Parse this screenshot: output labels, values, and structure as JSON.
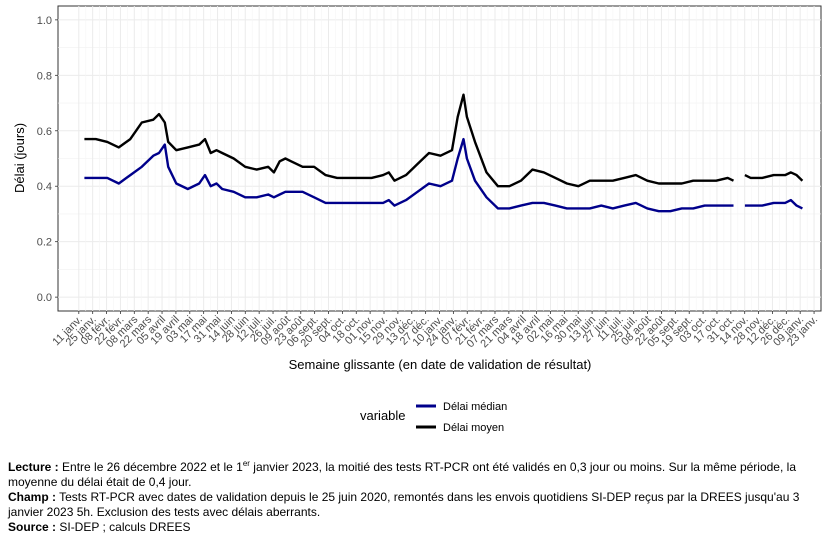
{
  "chart_data": {
    "type": "line",
    "xlabel": "Semaine glissante (en date de validation de résultat)",
    "ylabel": "Délai (jours)",
    "ylim": [
      -0.05,
      1.05
    ],
    "yticks": [
      "0.0",
      "0.2",
      "0.4",
      "0.6",
      "0.8",
      "1.0"
    ],
    "xlim": [
      -1.5,
      53.5
    ],
    "x_tick_labels": [
      "11 janv.",
      "25 janv.",
      "08 févr.",
      "22 févr.",
      "08 mars",
      "22 mars",
      "05 avril",
      "19 avril",
      "03 mai",
      "17 mai",
      "31 mai",
      "14 juin",
      "28 juin",
      "12 juil.",
      "26 juil.",
      "09 août",
      "23 août",
      "06 sept.",
      "20 sept.",
      "04 oct.",
      "18 oct.",
      "01 nov.",
      "15 nov.",
      "29 nov.",
      "13 déc.",
      "27 déc.",
      "10 janv.",
      "24 janv.",
      "07 févr.",
      "21 févr.",
      "07 mars",
      "21 mars",
      "04 avril",
      "18 avril",
      "02 mai",
      "16 mai",
      "30 mai",
      "13 juin",
      "27 juin",
      "11 juil.",
      "25 juil.",
      "08 août",
      "22 août",
      "05 sept.",
      "19 sept.",
      "03 oct.",
      "17 oct.",
      "31 oct.",
      "14 nov.",
      "28 nov.",
      "12 déc.",
      "26 déc.",
      "09 janv.",
      "23 janv."
    ],
    "grid": true,
    "legend_position": "bottom",
    "legend_title": "variable",
    "series": [
      {
        "name": "Délai médian",
        "color": "#00008b",
        "points": [
          [
            1,
            0.43
          ],
          [
            2,
            0.43
          ],
          [
            3,
            0.43
          ],
          [
            4,
            0.41
          ],
          [
            5,
            0.44
          ],
          [
            6,
            0.47
          ],
          [
            7,
            0.51
          ],
          [
            7.5,
            0.52
          ],
          [
            8,
            0.55
          ],
          [
            8.3,
            0.47
          ],
          [
            9,
            0.41
          ],
          [
            10,
            0.39
          ],
          [
            11,
            0.41
          ],
          [
            11.5,
            0.44
          ],
          [
            12,
            0.4
          ],
          [
            12.5,
            0.41
          ],
          [
            13,
            0.39
          ],
          [
            14,
            0.38
          ],
          [
            15,
            0.36
          ],
          [
            16,
            0.36
          ],
          [
            17,
            0.37
          ],
          [
            17.5,
            0.36
          ],
          [
            18,
            0.37
          ],
          [
            18.5,
            0.38
          ],
          [
            19,
            0.38
          ],
          [
            20,
            0.38
          ],
          [
            21,
            0.36
          ],
          [
            22,
            0.34
          ],
          [
            23,
            0.34
          ],
          [
            24,
            0.34
          ],
          [
            25,
            0.34
          ],
          [
            26,
            0.34
          ],
          [
            27,
            0.34
          ],
          [
            27.5,
            0.35
          ],
          [
            28,
            0.33
          ],
          [
            29,
            0.35
          ],
          [
            30,
            0.38
          ],
          [
            31,
            0.41
          ],
          [
            32,
            0.4
          ],
          [
            33,
            0.42
          ],
          [
            33.5,
            0.5
          ],
          [
            34,
            0.57
          ],
          [
            34.3,
            0.5
          ],
          [
            35,
            0.42
          ],
          [
            36,
            0.36
          ],
          [
            37,
            0.32
          ],
          [
            38,
            0.32
          ],
          [
            39,
            0.33
          ],
          [
            40,
            0.34
          ],
          [
            41,
            0.34
          ],
          [
            42,
            0.33
          ],
          [
            43,
            0.32
          ],
          [
            44,
            0.32
          ],
          [
            45,
            0.32
          ],
          [
            46,
            0.33
          ],
          [
            47,
            0.32
          ],
          [
            48,
            0.33
          ],
          [
            49,
            0.34
          ],
          [
            50,
            0.32
          ],
          [
            51,
            0.31
          ],
          [
            52,
            0.31
          ],
          [
            53,
            0.32
          ],
          [
            54,
            0.32
          ],
          [
            55,
            0.33
          ],
          [
            56,
            0.33
          ],
          [
            57,
            0.33
          ],
          [
            57.5,
            0.33
          ],
          null,
          [
            58.5,
            0.33
          ],
          [
            59,
            0.33
          ],
          [
            60,
            0.33
          ],
          [
            61,
            0.34
          ],
          [
            62,
            0.34
          ],
          [
            62.5,
            0.35
          ],
          [
            63,
            0.33
          ],
          [
            63.5,
            0.32
          ]
        ]
      },
      {
        "name": "Délai moyen",
        "color": "#000000",
        "points": [
          [
            1,
            0.57
          ],
          [
            2,
            0.57
          ],
          [
            3,
            0.56
          ],
          [
            4,
            0.54
          ],
          [
            5,
            0.57
          ],
          [
            6,
            0.63
          ],
          [
            7,
            0.64
          ],
          [
            7.5,
            0.66
          ],
          [
            8,
            0.63
          ],
          [
            8.3,
            0.56
          ],
          [
            9,
            0.53
          ],
          [
            10,
            0.54
          ],
          [
            11,
            0.55
          ],
          [
            11.5,
            0.57
          ],
          [
            12,
            0.52
          ],
          [
            12.5,
            0.53
          ],
          [
            13,
            0.52
          ],
          [
            14,
            0.5
          ],
          [
            15,
            0.47
          ],
          [
            16,
            0.46
          ],
          [
            17,
            0.47
          ],
          [
            17.5,
            0.45
          ],
          [
            18,
            0.49
          ],
          [
            18.5,
            0.5
          ],
          [
            19,
            0.49
          ],
          [
            20,
            0.47
          ],
          [
            21,
            0.47
          ],
          [
            22,
            0.44
          ],
          [
            23,
            0.43
          ],
          [
            24,
            0.43
          ],
          [
            25,
            0.43
          ],
          [
            26,
            0.43
          ],
          [
            27,
            0.44
          ],
          [
            27.5,
            0.45
          ],
          [
            28,
            0.42
          ],
          [
            29,
            0.44
          ],
          [
            30,
            0.48
          ],
          [
            31,
            0.52
          ],
          [
            32,
            0.51
          ],
          [
            33,
            0.53
          ],
          [
            33.5,
            0.65
          ],
          [
            34,
            0.73
          ],
          [
            34.3,
            0.65
          ],
          [
            35,
            0.56
          ],
          [
            36,
            0.45
          ],
          [
            37,
            0.4
          ],
          [
            38,
            0.4
          ],
          [
            39,
            0.42
          ],
          [
            40,
            0.46
          ],
          [
            41,
            0.45
          ],
          [
            42,
            0.43
          ],
          [
            43,
            0.41
          ],
          [
            44,
            0.4
          ],
          [
            45,
            0.42
          ],
          [
            46,
            0.42
          ],
          [
            47,
            0.42
          ],
          [
            48,
            0.43
          ],
          [
            49,
            0.44
          ],
          [
            50,
            0.42
          ],
          [
            51,
            0.41
          ],
          [
            52,
            0.41
          ],
          [
            53,
            0.41
          ],
          [
            54,
            0.42
          ],
          [
            55,
            0.42
          ],
          [
            56,
            0.42
          ],
          [
            57,
            0.43
          ],
          [
            57.5,
            0.42
          ],
          null,
          [
            58.5,
            0.44
          ],
          [
            59,
            0.43
          ],
          [
            60,
            0.43
          ],
          [
            61,
            0.44
          ],
          [
            62,
            0.44
          ],
          [
            62.5,
            0.45
          ],
          [
            63,
            0.44
          ],
          [
            63.5,
            0.42
          ]
        ]
      }
    ]
  },
  "notes": {
    "lecture_label": "Lecture :",
    "lecture_text_1": " Entre le 26 décembre 2022 et le 1",
    "lecture_sup": "er",
    "lecture_text_2": " janvier 2023, la moitié des tests RT-PCR ont été validés en 0,3 jour ou moins. Sur la même période, la moyenne du délai était de 0,4 jour.",
    "champ_label": "Champ :",
    "champ_text": " Tests RT-PCR avec dates de validation depuis le 25 juin 2020, remontés dans les envois quotidiens SI-DEP reçus par la DREES jusqu'au 3 janvier 2023 5h. Exclusion des tests avec délais aberrants.",
    "source_label": "Source :",
    "source_text": " SI-DEP ; calculs DREES"
  }
}
